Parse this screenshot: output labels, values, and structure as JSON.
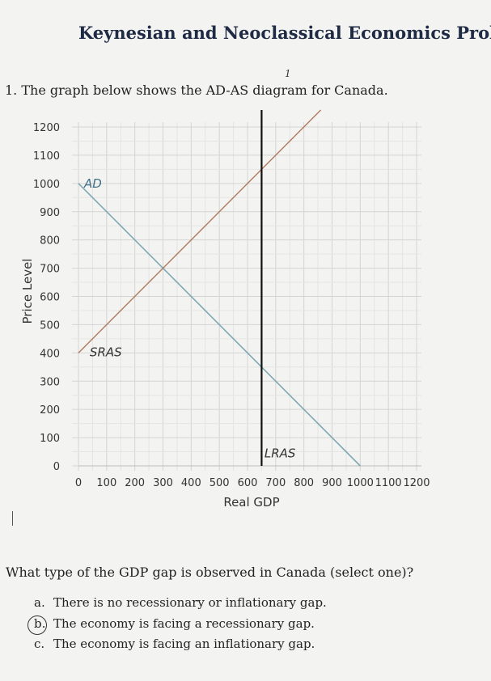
{
  "header": {
    "title": "Keynesian and Neoclassical Economics Prob",
    "question": "1. The graph below shows the AD-AS diagram for Canada.",
    "mark": "1"
  },
  "chart_data": {
    "type": "line",
    "title": "",
    "xlabel": "Real GDP",
    "ylabel": "Price Level",
    "xlim": [
      0,
      1200
    ],
    "ylim": [
      0,
      1200
    ],
    "x_ticks": [
      "0",
      "100",
      "200",
      "300",
      "400",
      "500",
      "600",
      "700",
      "800",
      "900",
      "1000",
      "1100",
      "1200"
    ],
    "y_ticks": [
      "0",
      "100",
      "200",
      "300",
      "400",
      "500",
      "600",
      "700",
      "800",
      "900",
      "1000",
      "1100",
      "1200"
    ],
    "grid": true,
    "series": [
      {
        "name": "AD",
        "color": "#7fa8b3",
        "points": [
          [
            0,
            1000
          ],
          [
            1000,
            0
          ]
        ]
      },
      {
        "name": "SRAS",
        "color": "#b07a60",
        "points": [
          [
            0,
            400
          ],
          [
            860,
            1260
          ]
        ]
      },
      {
        "name": "LRAS",
        "color": "#111111",
        "points": [
          [
            650,
            0
          ],
          [
            650,
            1260
          ]
        ]
      }
    ]
  },
  "answer": {
    "prompt": "What type of the GDP gap is observed in Canada (select one)?",
    "options": [
      {
        "letter": "a.",
        "text": "There is no recessionary or inflationary gap."
      },
      {
        "letter": "b.",
        "text": "The economy is facing a recessionary gap."
      },
      {
        "letter": "c.",
        "text": "The economy is facing an inflationary gap."
      }
    ],
    "selected": "b."
  }
}
